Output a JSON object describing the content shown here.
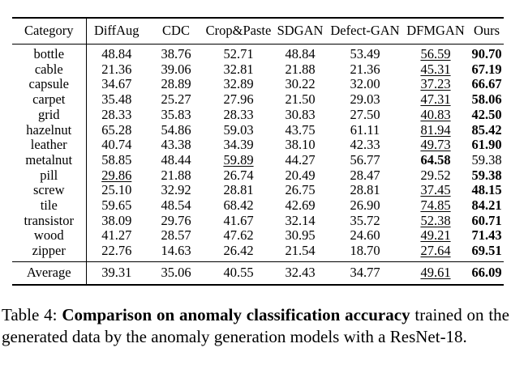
{
  "table": {
    "columns": [
      "Category",
      "DiffAug",
      "CDC",
      "Crop&Paste",
      "SDGAN",
      "Defect-GAN",
      "DFMGAN",
      "Ours"
    ],
    "rows": [
      {
        "category": "bottle",
        "values": [
          {
            "v": "48.84"
          },
          {
            "v": "38.76"
          },
          {
            "v": "52.71"
          },
          {
            "v": "48.84"
          },
          {
            "v": "53.49"
          },
          {
            "v": "56.59",
            "style": "underline"
          },
          {
            "v": "90.70",
            "style": "bold"
          }
        ]
      },
      {
        "category": "cable",
        "values": [
          {
            "v": "21.36"
          },
          {
            "v": "39.06"
          },
          {
            "v": "32.81"
          },
          {
            "v": "21.88"
          },
          {
            "v": "21.36"
          },
          {
            "v": "45.31",
            "style": "underline"
          },
          {
            "v": "67.19",
            "style": "bold"
          }
        ]
      },
      {
        "category": "capsule",
        "values": [
          {
            "v": "34.67"
          },
          {
            "v": "28.89"
          },
          {
            "v": "32.89"
          },
          {
            "v": "30.22"
          },
          {
            "v": "32.00"
          },
          {
            "v": "37.23",
            "style": "underline"
          },
          {
            "v": "66.67",
            "style": "bold"
          }
        ]
      },
      {
        "category": "carpet",
        "values": [
          {
            "v": "35.48"
          },
          {
            "v": "25.27"
          },
          {
            "v": "27.96"
          },
          {
            "v": "21.50"
          },
          {
            "v": "29.03"
          },
          {
            "v": "47.31",
            "style": "underline"
          },
          {
            "v": "58.06",
            "style": "bold"
          }
        ]
      },
      {
        "category": "grid",
        "values": [
          {
            "v": "28.33"
          },
          {
            "v": "35.83"
          },
          {
            "v": "28.33"
          },
          {
            "v": "30.83"
          },
          {
            "v": "27.50"
          },
          {
            "v": "40.83",
            "style": "underline"
          },
          {
            "v": "42.50",
            "style": "bold"
          }
        ]
      },
      {
        "category": "hazelnut",
        "values": [
          {
            "v": "65.28"
          },
          {
            "v": "54.86"
          },
          {
            "v": "59.03"
          },
          {
            "v": "43.75"
          },
          {
            "v": "61.11"
          },
          {
            "v": "81.94",
            "style": "underline"
          },
          {
            "v": "85.42",
            "style": "bold"
          }
        ]
      },
      {
        "category": "leather",
        "values": [
          {
            "v": "40.74"
          },
          {
            "v": "43.38"
          },
          {
            "v": "34.39"
          },
          {
            "v": "38.10"
          },
          {
            "v": "42.33"
          },
          {
            "v": "49.73",
            "style": "underline"
          },
          {
            "v": "61.90",
            "style": "bold"
          }
        ]
      },
      {
        "category": "metalnut",
        "values": [
          {
            "v": "58.85"
          },
          {
            "v": "48.44"
          },
          {
            "v": "59.89",
            "style": "underline"
          },
          {
            "v": "44.27"
          },
          {
            "v": "56.77"
          },
          {
            "v": "64.58",
            "style": "bold"
          },
          {
            "v": "59.38"
          }
        ]
      },
      {
        "category": "pill",
        "values": [
          {
            "v": "29.86",
            "style": "underline"
          },
          {
            "v": "21.88"
          },
          {
            "v": "26.74"
          },
          {
            "v": "20.49"
          },
          {
            "v": "28.47"
          },
          {
            "v": "29.52"
          },
          {
            "v": "59.38",
            "style": "bold"
          }
        ]
      },
      {
        "category": "screw",
        "values": [
          {
            "v": "25.10"
          },
          {
            "v": "32.92"
          },
          {
            "v": "28.81"
          },
          {
            "v": "26.75"
          },
          {
            "v": "28.81"
          },
          {
            "v": "37.45",
            "style": "underline"
          },
          {
            "v": "48.15",
            "style": "bold"
          }
        ]
      },
      {
        "category": "tile",
        "values": [
          {
            "v": "59.65"
          },
          {
            "v": "48.54"
          },
          {
            "v": "68.42"
          },
          {
            "v": "42.69"
          },
          {
            "v": "26.90"
          },
          {
            "v": "74.85",
            "style": "underline"
          },
          {
            "v": "84.21",
            "style": "bold"
          }
        ]
      },
      {
        "category": "transistor",
        "values": [
          {
            "v": "38.09"
          },
          {
            "v": "29.76"
          },
          {
            "v": "41.67"
          },
          {
            "v": "32.14"
          },
          {
            "v": "35.72"
          },
          {
            "v": "52.38",
            "style": "underline"
          },
          {
            "v": "60.71",
            "style": "bold"
          }
        ]
      },
      {
        "category": "wood",
        "values": [
          {
            "v": "41.27"
          },
          {
            "v": "28.57"
          },
          {
            "v": "47.62"
          },
          {
            "v": "30.95"
          },
          {
            "v": "24.60"
          },
          {
            "v": "49.21",
            "style": "underline"
          },
          {
            "v": "71.43",
            "style": "bold"
          }
        ]
      },
      {
        "category": "zipper",
        "values": [
          {
            "v": "22.76"
          },
          {
            "v": "14.63"
          },
          {
            "v": "26.42"
          },
          {
            "v": "21.54"
          },
          {
            "v": "18.70"
          },
          {
            "v": "27.64",
            "style": "underline"
          },
          {
            "v": "69.51",
            "style": "bold"
          }
        ]
      }
    ],
    "average": {
      "category": "Average",
      "values": [
        {
          "v": "39.31"
        },
        {
          "v": "35.06"
        },
        {
          "v": "40.55"
        },
        {
          "v": "32.43"
        },
        {
          "v": "34.77"
        },
        {
          "v": "49.61",
          "style": "underline"
        },
        {
          "v": "66.09",
          "style": "bold"
        }
      ]
    }
  },
  "caption": {
    "prefix": "Table 4: ",
    "bold": "Comparison on anomaly classification accuracy",
    "rest": " trained on the generated data by the anomaly generation models with a ResNet-18."
  }
}
